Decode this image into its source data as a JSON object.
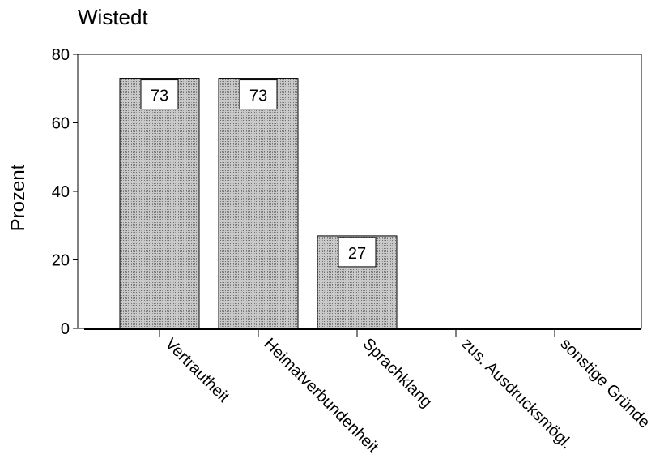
{
  "chart_data": {
    "type": "bar",
    "title": "Wistedt",
    "ylabel": "Prozent",
    "xlabel": "",
    "categories": [
      "Vertrautheit",
      "Heimatverbundenheit",
      "Sprachklang",
      "zus. Ausdrucksmögl.",
      "sonstige Gründe"
    ],
    "values": [
      73,
      73,
      27,
      0,
      0
    ],
    "data_labels": [
      "73",
      "73",
      "27",
      "",
      ""
    ],
    "ylim": [
      0,
      80
    ],
    "yticks": [
      0,
      20,
      40,
      60,
      80
    ],
    "grid": false,
    "legend": "none",
    "bar_color": "#b8b8b8"
  }
}
